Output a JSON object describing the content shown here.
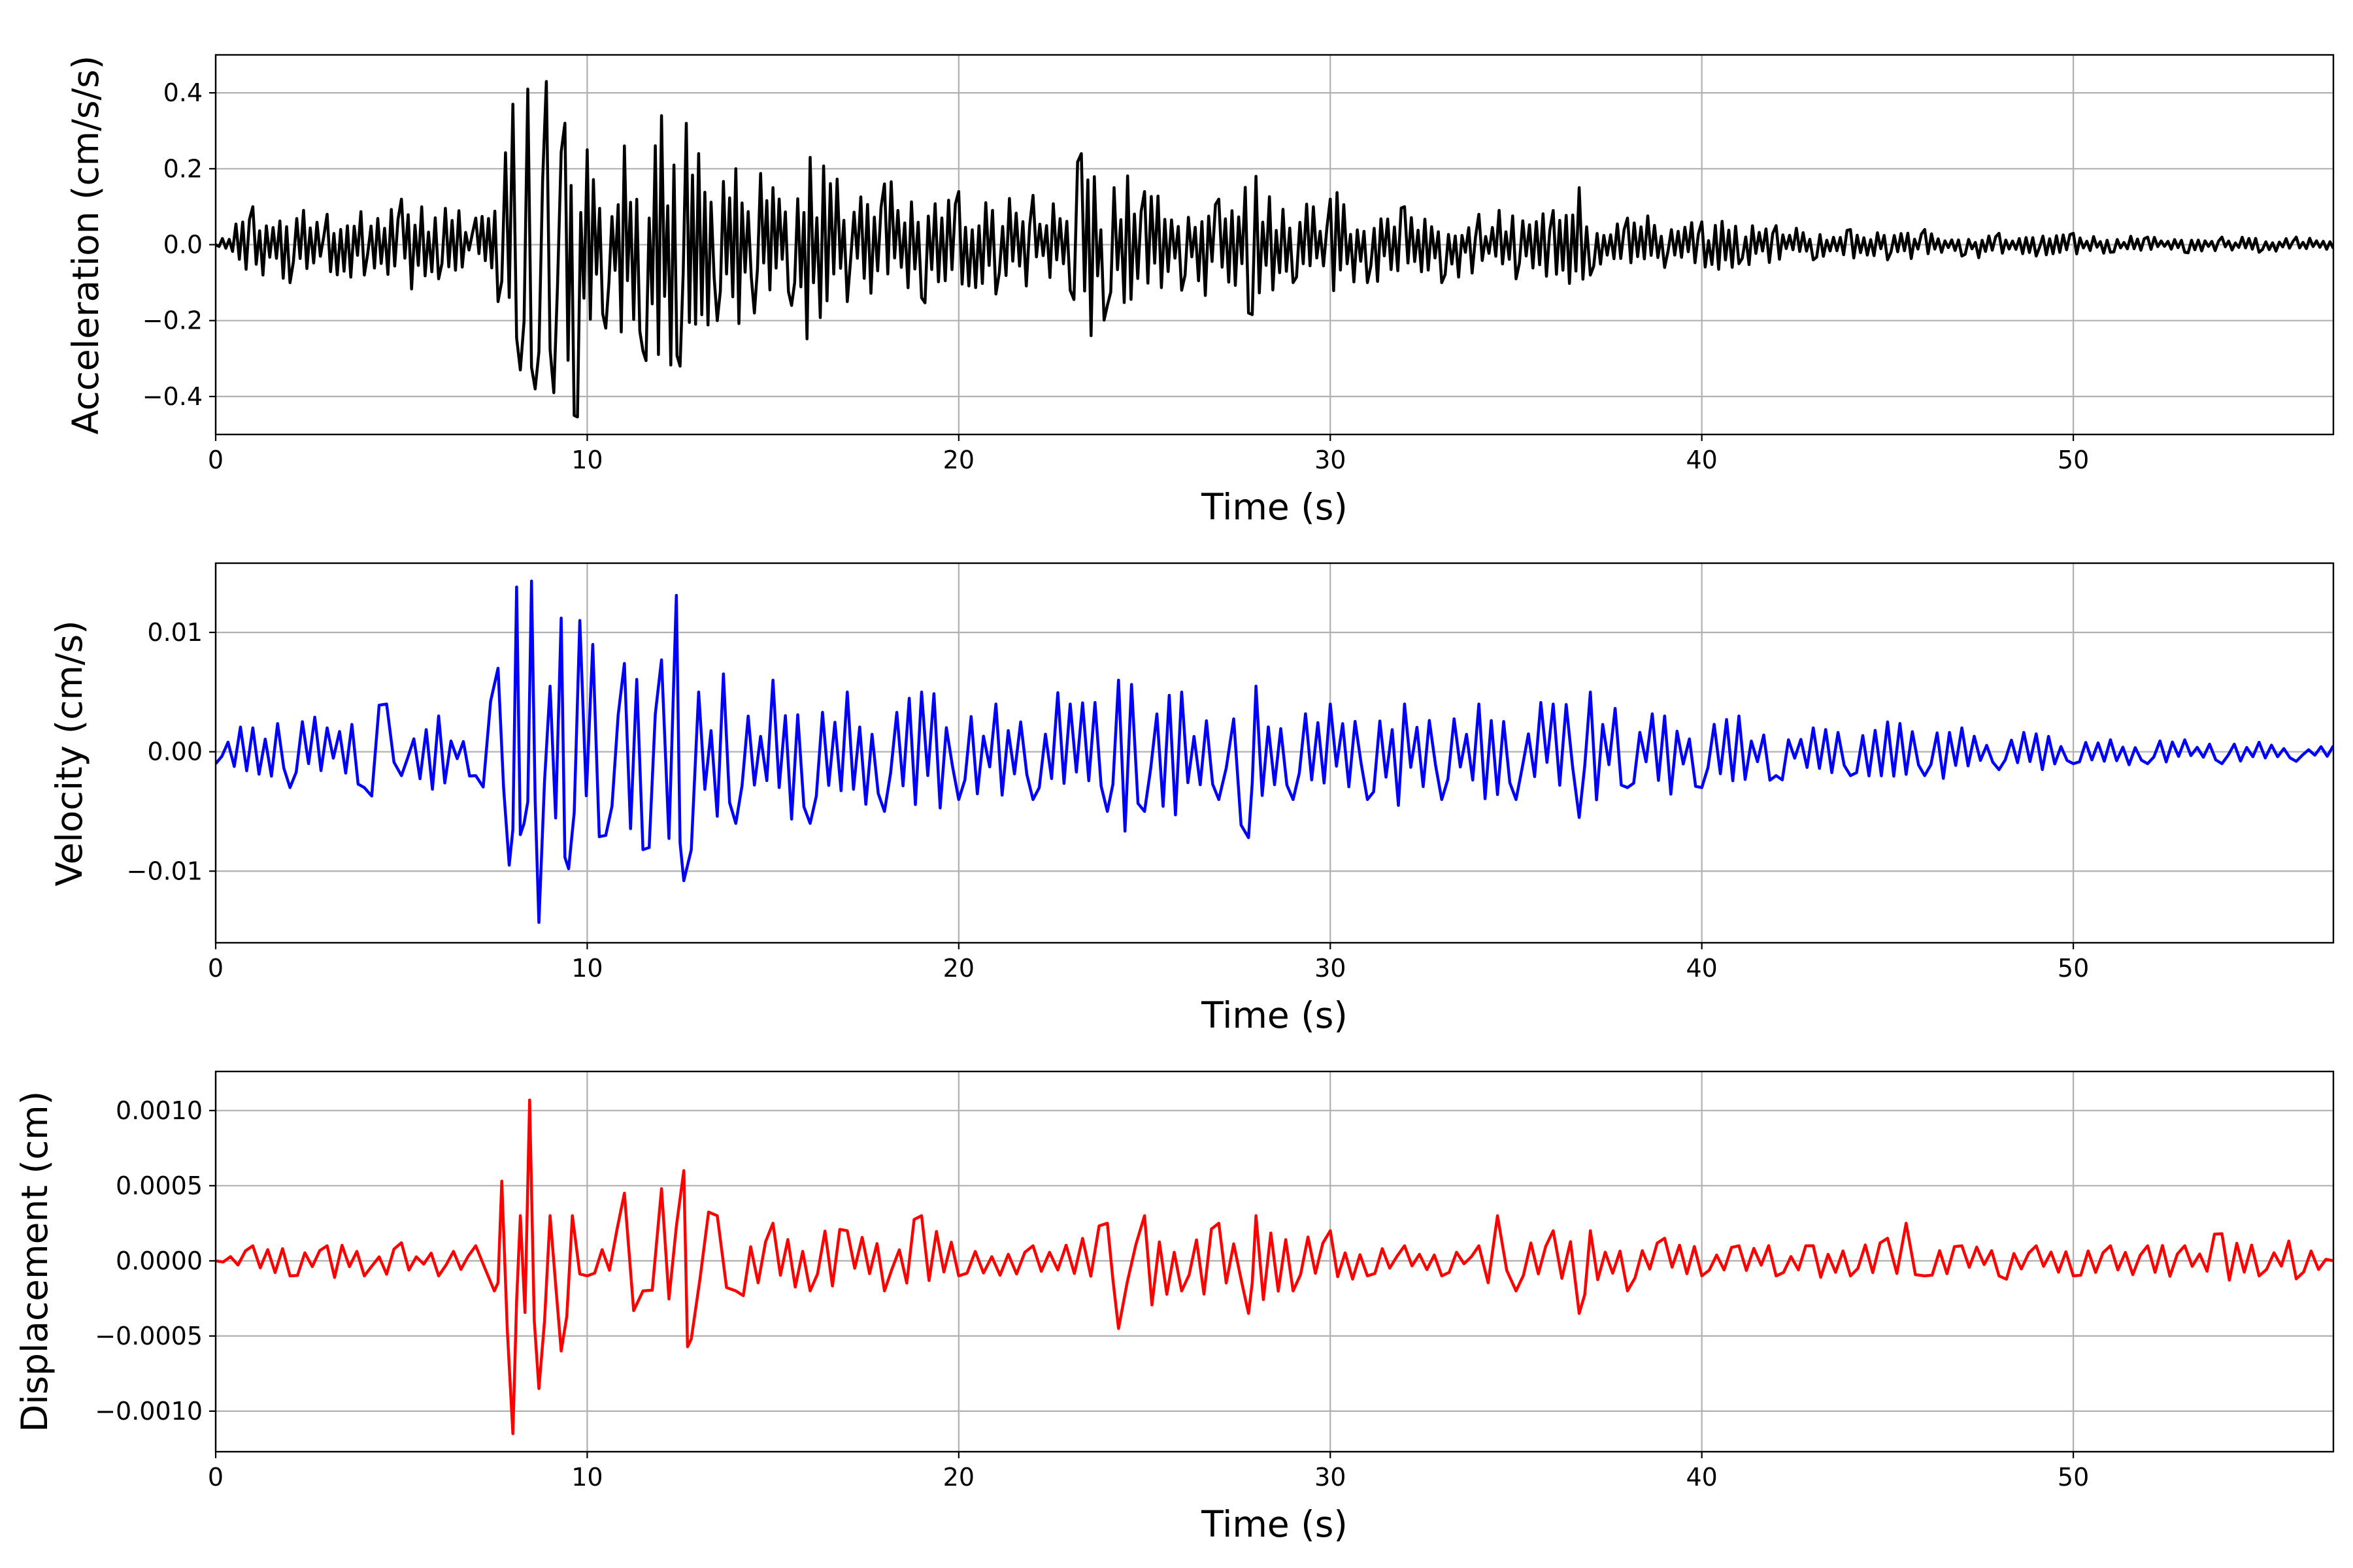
{
  "chart_data": [
    {
      "type": "line",
      "title": "",
      "xlabel": "Time (s)",
      "ylabel": "Acceleration (cm/s/s)",
      "xlim": [
        0,
        57
      ],
      "ylim": [
        -0.5,
        0.5
      ],
      "xticks": [
        0,
        10,
        20,
        30,
        40,
        50
      ],
      "yticks": [
        -0.4,
        -0.2,
        0.0,
        0.2,
        0.4
      ],
      "ytick_labels": [
        "−0.4",
        "−0.2",
        "0.0",
        "0.2",
        "0.4"
      ],
      "grid": true,
      "color": "#000000",
      "series": [
        {
          "x": [
            0,
            1,
            2,
            3,
            4,
            5,
            6,
            7,
            7.6,
            8.0,
            8.2,
            8.4,
            8.6,
            8.9,
            9.1,
            9.4,
            9.65,
            10,
            10.5,
            11,
            11.5,
            12,
            12.5,
            13,
            13.5,
            14,
            14.5,
            15,
            15.5,
            16,
            17,
            18,
            19,
            20,
            21,
            22,
            23,
            23.3,
            24,
            25,
            26,
            27,
            27.8,
            28,
            29,
            30,
            31,
            32,
            33,
            34,
            35,
            36,
            36.7,
            37,
            38,
            39,
            40,
            41,
            42,
            43,
            44,
            45,
            46,
            47,
            48,
            49,
            50,
            51,
            52,
            53,
            54,
            55,
            56,
            57
          ],
          "y": [
            0.0,
            0.1,
            -0.1,
            0.08,
            -0.08,
            0.12,
            -0.09,
            0.07,
            -0.15,
            0.37,
            -0.33,
            0.41,
            -0.38,
            0.43,
            -0.39,
            0.32,
            -0.45,
            0.25,
            -0.22,
            0.26,
            -0.28,
            0.34,
            -0.32,
            0.24,
            -0.2,
            0.2,
            -0.18,
            0.15,
            -0.16,
            0.23,
            -0.15,
            0.16,
            -0.14,
            0.14,
            -0.13,
            0.13,
            -0.12,
            0.24,
            -0.16,
            0.14,
            -0.12,
            0.12,
            -0.18,
            0.18,
            -0.1,
            0.12,
            -0.1,
            0.1,
            -0.1,
            0.08,
            -0.09,
            0.09,
            0.15,
            -0.08,
            0.07,
            -0.06,
            0.06,
            -0.05,
            0.05,
            -0.04,
            0.04,
            -0.04,
            0.04,
            -0.03,
            0.03,
            -0.03,
            0.03,
            -0.02,
            0.02,
            -0.02,
            0.02,
            -0.02,
            0.02,
            -0.01
          ]
        }
      ]
    },
    {
      "type": "line",
      "title": "",
      "xlabel": "Time (s)",
      "ylabel": "Velocity (cm/s)",
      "xlim": [
        0,
        57
      ],
      "ylim": [
        -0.016,
        0.0158
      ],
      "xticks": [
        0,
        10,
        20,
        30,
        40,
        50
      ],
      "yticks": [
        -0.01,
        0.0,
        0.01
      ],
      "ytick_labels": [
        "−0.01",
        "0.00",
        "0.01"
      ],
      "grid": true,
      "color": "#0000ff",
      "series": [
        {
          "x": [
            0,
            1,
            2,
            3,
            4,
            4.6,
            5,
            6,
            7,
            7.6,
            7.9,
            8.1,
            8.3,
            8.5,
            8.7,
            9.0,
            9.3,
            9.5,
            9.8,
            10.5,
            11,
            11.5,
            12,
            12.4,
            12.6,
            13,
            14,
            15,
            16,
            17,
            18,
            19,
            20,
            21,
            22,
            23,
            24,
            24.3,
            25,
            26,
            27,
            27.8,
            28,
            29,
            30,
            31,
            32,
            33,
            34,
            35,
            36,
            36.7,
            37,
            38,
            39,
            40,
            41,
            42,
            43,
            44,
            45,
            46,
            47,
            48,
            49,
            50,
            51,
            52,
            53,
            54,
            55,
            56,
            57
          ],
          "y": [
            -0.001,
            0.002,
            -0.003,
            0.002,
            -0.003,
            0.004,
            -0.002,
            0.003,
            -0.002,
            0.007,
            -0.0095,
            0.0138,
            -0.006,
            0.0143,
            -0.0143,
            0.0055,
            0.0112,
            -0.0098,
            0.011,
            -0.007,
            0.0074,
            -0.0082,
            0.0077,
            0.0131,
            -0.0108,
            0.005,
            -0.006,
            0.006,
            -0.006,
            0.005,
            -0.005,
            0.005,
            -0.004,
            0.004,
            -0.004,
            0.004,
            -0.005,
            0.006,
            -0.005,
            0.005,
            -0.004,
            -0.0072,
            0.0055,
            -0.004,
            0.004,
            -0.004,
            0.004,
            -0.004,
            0.004,
            -0.004,
            0.004,
            -0.0055,
            0.005,
            -0.003,
            0.003,
            -0.003,
            0.003,
            -0.002,
            0.002,
            -0.002,
            0.0025,
            -0.002,
            0.002,
            -0.0015,
            0.0015,
            -0.001,
            0.001,
            -0.001,
            0.001,
            -0.001,
            0.0008,
            -0.0008,
            0.0005
          ]
        }
      ]
    },
    {
      "type": "line",
      "title": "",
      "xlabel": "Time (s)",
      "ylabel": "Displacement (cm)",
      "xlim": [
        0,
        57
      ],
      "ylim": [
        -0.00127,
        0.00126
      ],
      "xticks": [
        0,
        10,
        20,
        30,
        40,
        50
      ],
      "yticks": [
        -0.001,
        -0.0005,
        0.0,
        0.0005,
        0.001
      ],
      "ytick_labels": [
        "−0.0010",
        "−0.0005",
        "0.0000",
        "0.0005",
        "0.0010"
      ],
      "grid": true,
      "color": "#ff0000",
      "series": [
        {
          "x": [
            0,
            1,
            2,
            3,
            4,
            5,
            6,
            7,
            7.5,
            7.7,
            8.0,
            8.2,
            8.45,
            8.7,
            9.0,
            9.3,
            9.6,
            10,
            11,
            11.5,
            12,
            12.6,
            12.8,
            13.5,
            14,
            15,
            16,
            17,
            18,
            19,
            20,
            22,
            24,
            24.3,
            25,
            26,
            27,
            27.8,
            28,
            29,
            30,
            31,
            32,
            33,
            34,
            34.5,
            35,
            36,
            36.7,
            37,
            38,
            39,
            40,
            41,
            42,
            43,
            44,
            45,
            45.5,
            46,
            47,
            48,
            49,
            50,
            51,
            52,
            53,
            54,
            55,
            56,
            57
          ],
          "y": [
            0.0,
            0.0001,
            -0.0001,
            0.0001,
            -0.0001,
            0.00012,
            -0.0001,
            0.0001,
            -0.0002,
            0.00053,
            -0.00115,
            0.0003,
            0.00107,
            -0.00085,
            0.0003,
            -0.0006,
            0.0003,
            -0.0001,
            0.00045,
            -0.0002,
            0.00048,
            0.0006,
            -0.00052,
            0.0003,
            -0.0002,
            0.00025,
            -0.0002,
            0.0002,
            -0.0002,
            0.0003,
            -0.0001,
            0.0001,
            0.00025,
            -0.00045,
            0.0003,
            -0.0002,
            0.00025,
            -0.00035,
            0.0003,
            -0.0002,
            0.0002,
            -0.0001,
            0.0001,
            -0.0001,
            0.0001,
            0.0003,
            -0.0002,
            0.0002,
            -0.00035,
            0.0002,
            -0.0002,
            0.00015,
            -0.0001,
            0.0001,
            -0.0001,
            0.0001,
            -0.0001,
            0.00015,
            0.00025,
            -0.0001,
            0.0001,
            -0.0001,
            0.0001,
            -0.0001,
            0.0001,
            0.0001,
            0.0001,
            0.00018,
            -0.0001,
            -0.00012,
            0.0
          ]
        }
      ]
    }
  ]
}
